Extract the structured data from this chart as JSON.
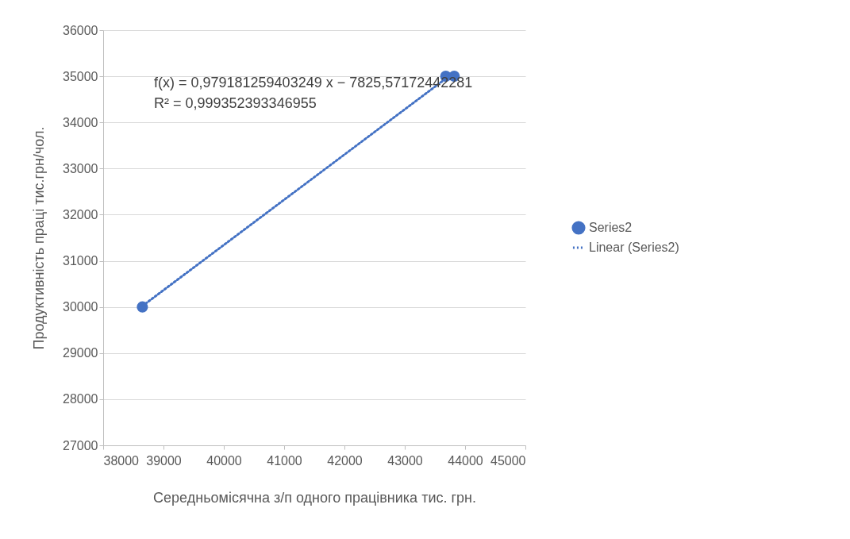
{
  "chart_data": {
    "type": "scatter",
    "xlabel": "Середньомісячна з/п одного працівника тис. грн.",
    "ylabel": "Продуктивність праці тис.грн/чол.",
    "annotations": [
      "f(x) = 0,979181259403249 x − 7825,57172442281",
      "R² = 0,999352393346955"
    ],
    "series": [
      {
        "name": "Series2",
        "marker": "circle",
        "color": "#4472c4",
        "x": [
          38650,
          43680,
          43820
        ],
        "values": [
          30000,
          35000,
          35000
        ]
      },
      {
        "name": "Linear (Series2)",
        "type": "line",
        "color": "#4472c4",
        "line_style": "dotted",
        "x": [
          38650,
          43680
        ],
        "values": [
          30020,
          34950
        ]
      }
    ],
    "xlim": [
      38000,
      45000
    ],
    "xticks": [
      38000,
      39000,
      40000,
      41000,
      42000,
      43000,
      44000,
      45000
    ],
    "ylim": [
      27000,
      36000
    ],
    "yticks": [
      27000,
      28000,
      29000,
      30000,
      31000,
      32000,
      33000,
      34000,
      35000,
      36000
    ],
    "grid": "y",
    "legend": "right"
  }
}
